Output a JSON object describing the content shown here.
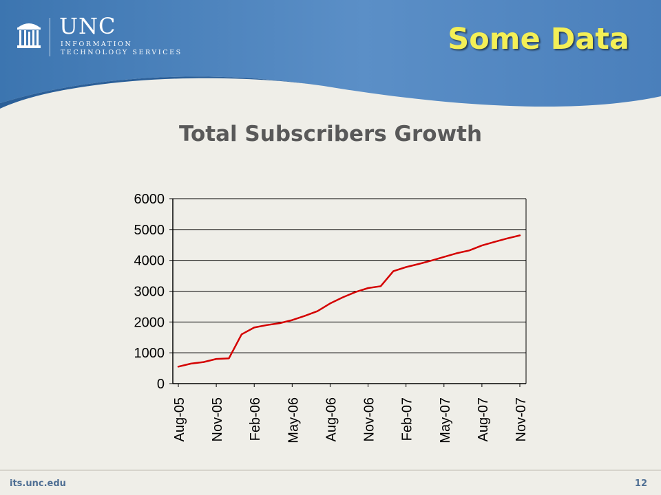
{
  "header": {
    "logo_text": "UNC",
    "logo_subtitle_line1": "INFORMATION",
    "logo_subtitle_line2": "TECHNOLOGY SERVICES",
    "slide_title": "Some Data",
    "colors": {
      "band_dark": "#2f6aa3",
      "band_light": "#6f9fd2",
      "title": "#f4ef56"
    }
  },
  "chart_data": {
    "type": "line",
    "title": "Total Subscribers Growth",
    "xlabel": "",
    "ylabel": "",
    "ylim": [
      0,
      6000
    ],
    "yticks": [
      0,
      1000,
      2000,
      3000,
      4000,
      5000,
      6000
    ],
    "xtick_labels": [
      "Aug-05",
      "Nov-05",
      "Feb-06",
      "May-06",
      "Aug-06",
      "Nov-06",
      "Feb-07",
      "May-07",
      "Aug-07",
      "Nov-07"
    ],
    "grid": "horizontal",
    "legend": "none",
    "series_color": "#d40000",
    "series": [
      {
        "x": [
          "Aug-05",
          "Sep-05",
          "Oct-05",
          "Nov-05",
          "Dec-05",
          "Jan-06",
          "Feb-06",
          "Mar-06",
          "Apr-06",
          "May-06",
          "Jun-06",
          "Jul-06",
          "Aug-06",
          "Sep-06",
          "Oct-06",
          "Nov-06",
          "Dec-06",
          "Jan-07",
          "Feb-07",
          "Mar-07",
          "Apr-07",
          "May-07",
          "Jun-07",
          "Jul-07",
          "Aug-07",
          "Sep-07",
          "Oct-07",
          "Nov-07"
        ],
        "values": [
          550,
          650,
          700,
          800,
          820,
          1600,
          1820,
          1900,
          1960,
          2060,
          2200,
          2350,
          2600,
          2800,
          2970,
          3100,
          3160,
          3650,
          3780,
          3880,
          3990,
          4110,
          4230,
          4320,
          4480,
          4600,
          4710,
          4810
        ]
      }
    ]
  },
  "footer": {
    "site": "its.unc.edu",
    "page_number": "12"
  }
}
